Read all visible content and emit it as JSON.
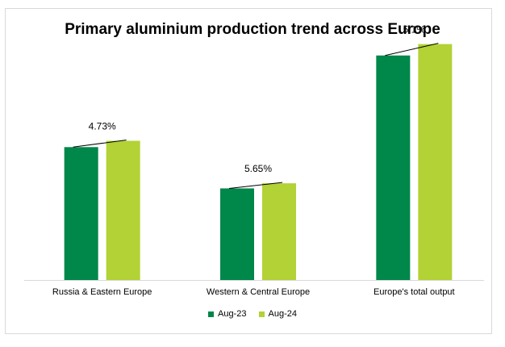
{
  "chart_data": {
    "type": "bar",
    "title": "Primary aluminium production trend across Europe",
    "categories": [
      "Russia & Eastern Europe",
      "Western & Central Europe",
      "Europe's total output"
    ],
    "series": [
      {
        "name": "Aug-23",
        "values": [
          338,
          233,
          571
        ],
        "color": "#00874a"
      },
      {
        "name": "Aug-24",
        "values": [
          354,
          246,
          600
        ],
        "color": "#b2d235"
      }
    ],
    "annotations": [
      "4.73%",
      "5.65%",
      "5.1%"
    ],
    "ylim": [
      0,
      630
    ],
    "grid": false,
    "legend_position": "bottom",
    "xlabel": "",
    "ylabel": ""
  }
}
